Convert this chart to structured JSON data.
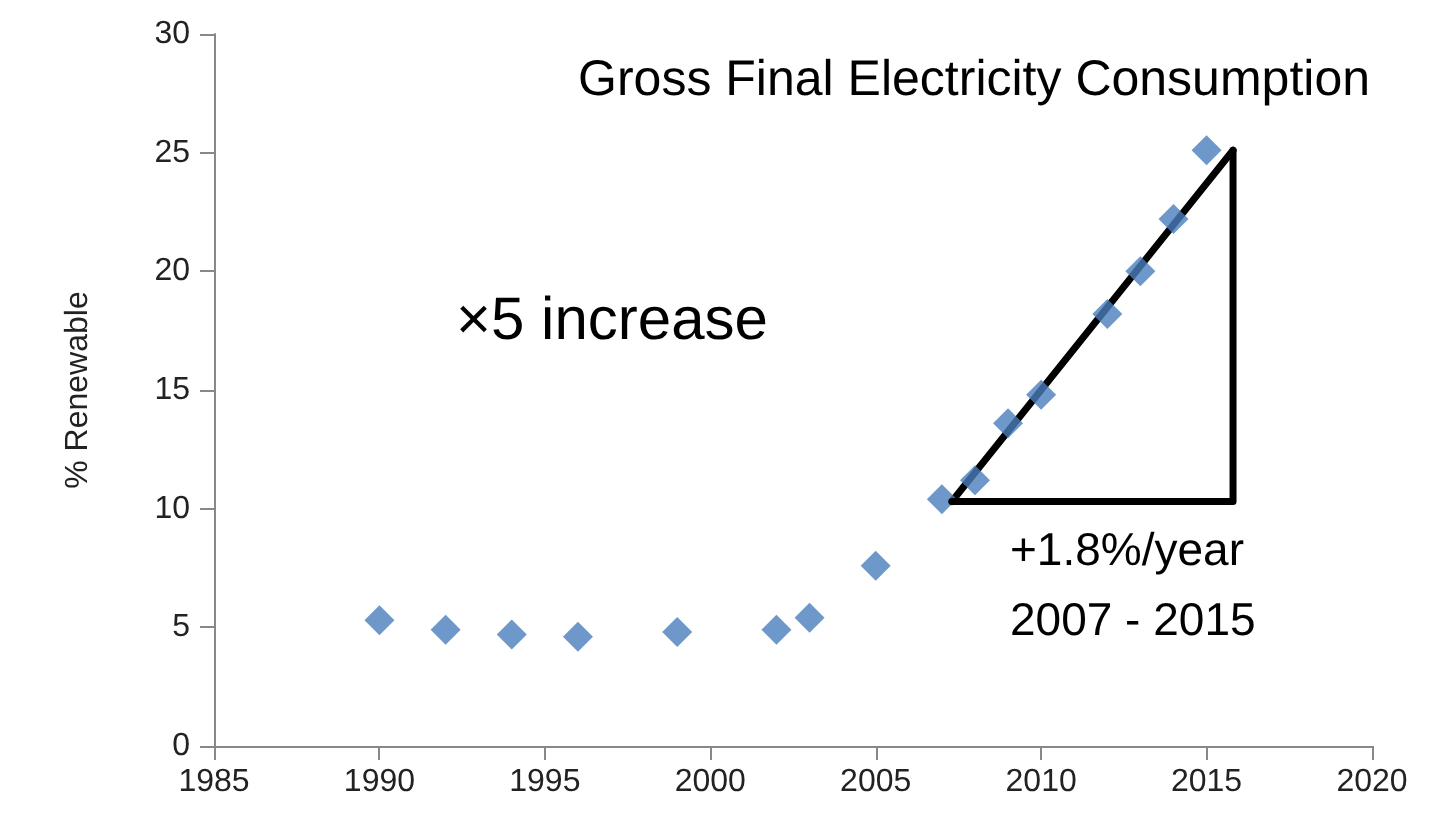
{
  "chart_data": {
    "type": "scatter",
    "title": "Gross Final Electricity Consumption",
    "ylabel": "% Renewable",
    "marker": "diamond",
    "grid": false,
    "xlim": [
      1985,
      2020
    ],
    "xticks": [
      1985,
      1990,
      1995,
      2000,
      2005,
      2010,
      2015,
      2020
    ],
    "ylim": [
      0,
      30
    ],
    "yticks": [
      0,
      5,
      10,
      15,
      20,
      25,
      30
    ],
    "series": [
      {
        "color": "#4a7ebb",
        "x": [
          1990,
          1992,
          1994,
          1996,
          1999,
          2002,
          2003,
          2005,
          2007,
          2008,
          2009,
          2010,
          2012,
          2013,
          2014,
          2015
        ],
        "values": [
          5.3,
          4.9,
          4.7,
          4.6,
          4.8,
          4.9,
          5.4,
          7.6,
          10.4,
          11.2,
          13.6,
          14.8,
          18.2,
          20.0,
          22.2,
          25.1
        ]
      },
      {
        "type": "line",
        "color": "#000000",
        "marker": "none",
        "x": [
          2007.3,
          2015.8
        ],
        "values": [
          10.3,
          25.1
        ]
      }
    ],
    "annotations": [
      "×5 increase",
      "+1.8%/year",
      "2007 - 2015"
    ]
  }
}
